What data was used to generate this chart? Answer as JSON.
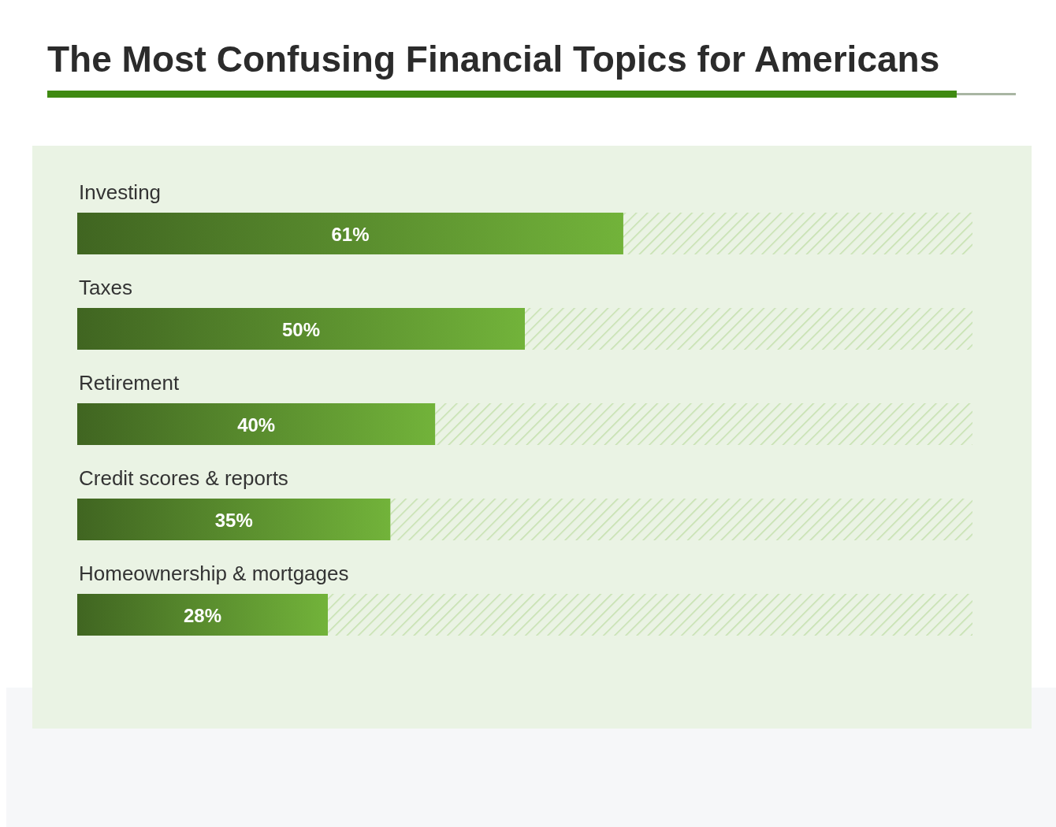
{
  "chart_data": {
    "type": "bar",
    "title": "The Most Confusing Financial Topics for Americans",
    "orientation": "horizontal",
    "stacked": true,
    "categories": [
      "Investing",
      "Taxes",
      "Retirement",
      "Credit scores & reports",
      "Homeownership & mortgages"
    ],
    "series": [
      {
        "color": "#72b33a",
        "values": [
          61,
          50,
          40,
          35,
          28
        ],
        "value_labels": [
          "61%",
          "50%",
          "40%",
          "35%",
          "28%"
        ]
      },
      {
        "color": "#c4e0ad",
        "values": [
          39,
          50,
          60,
          65,
          72
        ]
      }
    ],
    "xlim": [
      0,
      100
    ]
  }
}
